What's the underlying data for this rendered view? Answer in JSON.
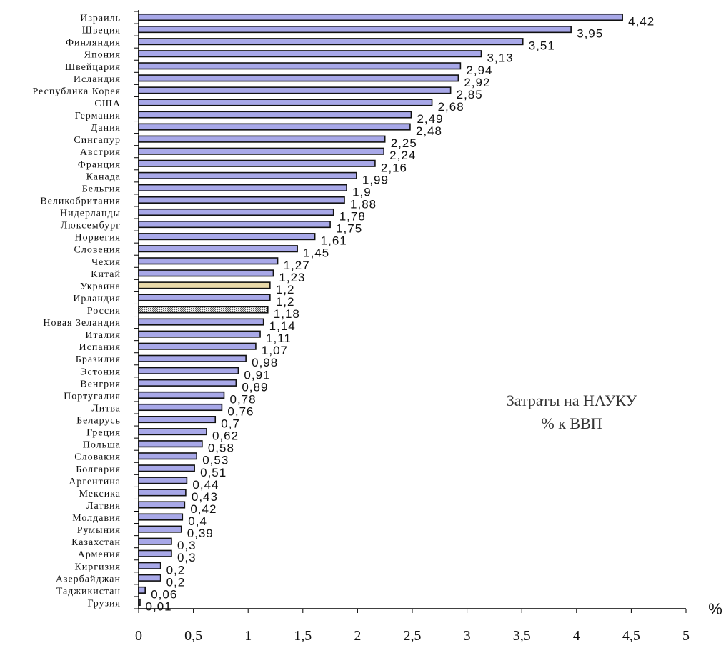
{
  "chart_data": {
    "type": "bar",
    "orientation": "horizontal",
    "title_lines": [
      "Затраты на НАУКУ",
      "% к ВВП"
    ],
    "x_unit": "%",
    "xlim": [
      0,
      5
    ],
    "x_ticks": [
      0,
      0.5,
      1,
      1.5,
      2,
      2.5,
      3,
      3.5,
      4,
      4.5,
      5
    ],
    "x_tick_labels": [
      "0",
      "0,5",
      "1",
      "1,5",
      "2",
      "2,5",
      "3",
      "3,5",
      "4",
      "4,5",
      "5"
    ],
    "grid": false,
    "categories": [
      "Израиль",
      "Швеция",
      "Финляндия",
      "Япония",
      "Швейцария",
      "Исландия",
      "Республика Корея",
      "США",
      "Германия",
      "Дания",
      "Сингапур",
      "Австрия",
      "Франция",
      "Канада",
      "Бельгия",
      "Великобритания",
      "Нидерланды",
      "Люксембург",
      "Норвегия",
      "Словения",
      "Чехия",
      "Китай",
      "Украина",
      "Ирландия",
      "Россия",
      "Новая Зеландия",
      "Италия",
      "Испания",
      "Бразилия",
      "Эстония",
      "Венгрия",
      "Португалия",
      "Литва",
      "Беларусь",
      "Греция",
      "Польша",
      "Словакия",
      "Болгария",
      "Аргентина",
      "Мексика",
      "Латвия",
      "Молдавия",
      "Румыния",
      "Казахстан",
      "Армения",
      "Киргизия",
      "Азербайджан",
      "Таджикистан",
      "Грузия"
    ],
    "values": [
      4.42,
      3.95,
      3.51,
      3.13,
      2.94,
      2.92,
      2.85,
      2.68,
      2.49,
      2.48,
      2.25,
      2.24,
      2.16,
      1.99,
      1.9,
      1.88,
      1.78,
      1.75,
      1.61,
      1.45,
      1.27,
      1.23,
      1.2,
      1.2,
      1.18,
      1.14,
      1.11,
      1.07,
      0.98,
      0.91,
      0.89,
      0.78,
      0.76,
      0.7,
      0.62,
      0.58,
      0.53,
      0.51,
      0.44,
      0.43,
      0.42,
      0.4,
      0.39,
      0.3,
      0.3,
      0.2,
      0.2,
      0.06,
      0.01
    ],
    "value_labels": [
      "4,42",
      "3,95",
      "3,51",
      "3,13",
      "2,94",
      "2,92",
      "2,85",
      "2,68",
      "2,49",
      "2,48",
      "2,25",
      "2,24",
      "2,16",
      "1,99",
      "1,9",
      "1,88",
      "1,78",
      "1,75",
      "1,61",
      "1,45",
      "1,27",
      "1,23",
      "1,2",
      "1,2",
      "1,18",
      "1,14",
      "1,11",
      "1,07",
      "0,98",
      "0,91",
      "0,89",
      "0,78",
      "0,76",
      "0,7",
      "0,62",
      "0,58",
      "0,53",
      "0,51",
      "0,44",
      "0,43",
      "0,42",
      "0,4",
      "0,39",
      "0,3",
      "0,3",
      "0,2",
      "0,2",
      "0,06",
      "0,01"
    ],
    "colors": {
      "default_bar": "#a8a8e8",
      "highlight_bar": "#e8d8a8",
      "hatched_bar": "#d8d8d8",
      "bar_outline": "#111111",
      "axis": "#000000"
    },
    "highlighted_categories": [
      "Украина"
    ],
    "hatched_categories": [
      "Россия"
    ]
  }
}
